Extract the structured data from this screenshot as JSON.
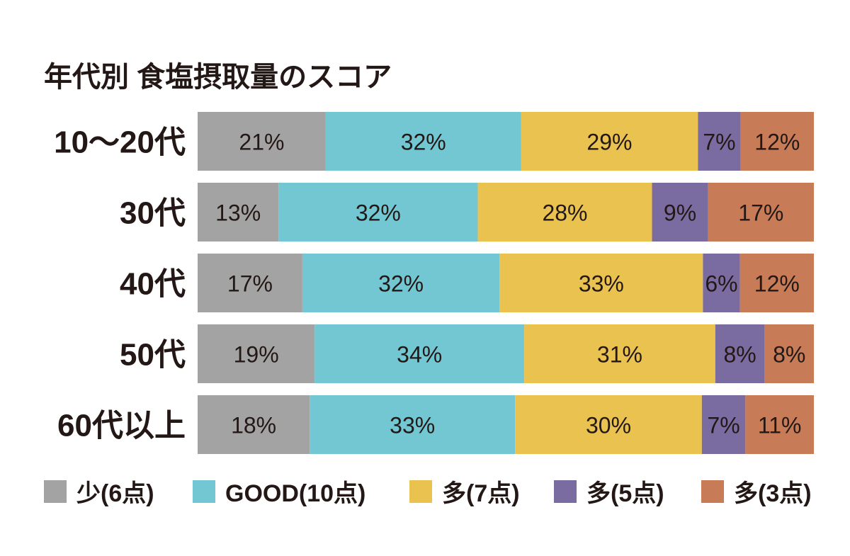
{
  "chart_data": {
    "type": "bar",
    "orientation": "horizontal",
    "stacked": true,
    "title": "年代別 食塩摂取量のスコア",
    "categories": [
      "10〜20代",
      "30代",
      "40代",
      "50代",
      "60代以上"
    ],
    "series": [
      {
        "name": "少(6点)",
        "color": "#a3a3a3",
        "values": [
          21,
          13,
          17,
          19,
          18
        ]
      },
      {
        "name": "GOOD(10点)",
        "color": "#72c7d2",
        "values": [
          32,
          32,
          32,
          34,
          33
        ]
      },
      {
        "name": "多(7点)",
        "color": "#eac24f",
        "values": [
          29,
          28,
          33,
          31,
          30
        ]
      },
      {
        "name": "多(5点)",
        "color": "#7a6ca1",
        "values": [
          7,
          9,
          6,
          8,
          7
        ]
      },
      {
        "name": "多(3点)",
        "color": "#c77b57",
        "values": [
          12,
          17,
          12,
          8,
          11
        ]
      }
    ],
    "value_suffix": "%",
    "legend_position": "bottom",
    "grid": false
  }
}
